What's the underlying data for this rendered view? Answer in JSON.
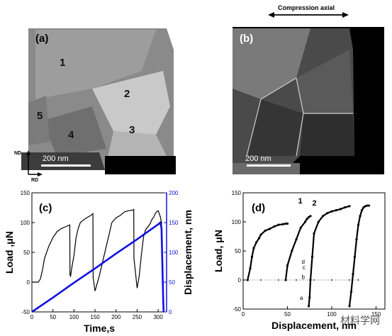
{
  "panel_a": {
    "label": "(a)",
    "grains": [
      "1",
      "2",
      "3",
      "4",
      "5"
    ],
    "scale_bar": "200 nm",
    "axes": {
      "vertical": "ND",
      "horizontal": "RD"
    }
  },
  "panel_b": {
    "label": "(b)",
    "arrow_label": "Compression axial",
    "scale_bar": "200 nm"
  },
  "chart_c": {
    "label": "(c)",
    "xlabel": "Time,s",
    "ylabel_left": "Load ,μN",
    "ylabel_right": "Displacement, nm",
    "x_ticks": [
      "0",
      "50",
      "100",
      "150",
      "200",
      "250",
      "300"
    ],
    "y_ticks_left": [
      "-50",
      "0",
      "50",
      "100",
      "150"
    ],
    "y_ticks_right": [
      "0",
      "50",
      "100",
      "150",
      "200"
    ]
  },
  "chart_d": {
    "label": "(d)",
    "xlabel": "Displacement, nm",
    "ylabel": "Load, μN",
    "x_ticks": [
      "0",
      "50",
      "100",
      "150"
    ],
    "y_ticks": [
      "-50",
      "0",
      "50",
      "100",
      "150"
    ],
    "annotations": [
      "1",
      "2",
      "a",
      "b",
      "c",
      "d"
    ]
  },
  "watermark": "材料学网",
  "chart_data": [
    {
      "type": "line",
      "title": "",
      "xlabel": "Time,s",
      "ylabel": "Load ,μN",
      "y2label": "Displacement, nm",
      "xlim": [
        0,
        320
      ],
      "ylim": [
        -50,
        150
      ],
      "y2lim": [
        0,
        200
      ],
      "colors": {
        "load": "#000000",
        "displacement": "#1010e0"
      },
      "series": [
        {
          "axis": "left",
          "x": [
            0,
            15,
            20,
            25,
            30,
            40,
            50,
            60,
            70,
            80,
            87,
            90,
            90.5,
            92,
            95,
            100,
            105,
            110,
            115,
            120,
            130,
            140,
            145,
            145.5,
            150,
            160,
            170,
            180,
            185,
            190,
            200,
            210,
            220,
            230,
            240,
            242,
            242.5,
            250,
            255,
            260,
            265,
            270,
            280,
            285,
            290,
            293,
            296,
            300,
            305,
            308,
            312,
            313
          ],
          "y": [
            0,
            0,
            5,
            20,
            40,
            60,
            75,
            85,
            90,
            93,
            95,
            96,
            12,
            10,
            25,
            45,
            75,
            90,
            100,
            103,
            108,
            112,
            115,
            8,
            -15,
            10,
            40,
            70,
            85,
            100,
            108,
            112,
            118,
            120,
            121,
            122,
            40,
            -10,
            10,
            45,
            75,
            88,
            97,
            105,
            110,
            115,
            118,
            120,
            110,
            100,
            -50,
            -50
          ]
        },
        {
          "axis": "right",
          "x": [
            0,
            50,
            100,
            150,
            200,
            250,
            300,
            305,
            308,
            312,
            313
          ],
          "y": [
            0,
            24,
            49,
            73,
            98,
            122,
            147,
            150,
            140,
            20,
            0
          ]
        }
      ]
    },
    {
      "type": "scatter",
      "title": "",
      "xlabel": "Displacement, nm",
      "ylabel": "Load, μN",
      "xlim": [
        0,
        160
      ],
      "ylim": [
        -50,
        150
      ],
      "colors": {
        "points": "#000000"
      },
      "series": [
        {
          "x": [
            5,
            8,
            10,
            12,
            15,
            18,
            20,
            25,
            30,
            35,
            40,
            45,
            48,
            50
          ],
          "y": [
            0,
            20,
            40,
            55,
            65,
            72,
            78,
            85,
            88,
            92,
            95,
            96,
            97,
            97
          ]
        },
        {
          "x": [
            48,
            50,
            55,
            60,
            65,
            70,
            72,
            74,
            76
          ],
          "y": [
            0,
            25,
            50,
            70,
            90,
            100,
            105,
            108,
            110
          ]
        },
        {
          "x": [
            74,
            75,
            76,
            78,
            80,
            85,
            90,
            95,
            100,
            105,
            110,
            115,
            120
          ],
          "y": [
            -45,
            -30,
            0,
            40,
            80,
            100,
            110,
            115,
            118,
            120,
            122,
            125,
            127
          ]
        },
        {
          "x": [
            120,
            122,
            124,
            126,
            128,
            130,
            132,
            134,
            136,
            138,
            140,
            142
          ],
          "y": [
            -45,
            -20,
            10,
            40,
            70,
            95,
            110,
            120,
            125,
            127,
            128,
            128
          ]
        },
        {
          "x": [
            0,
            20,
            40,
            60,
            80,
            100,
            120,
            130
          ],
          "y": [
            0,
            0,
            0,
            0,
            0,
            0,
            0,
            0
          ]
        }
      ]
    }
  ]
}
